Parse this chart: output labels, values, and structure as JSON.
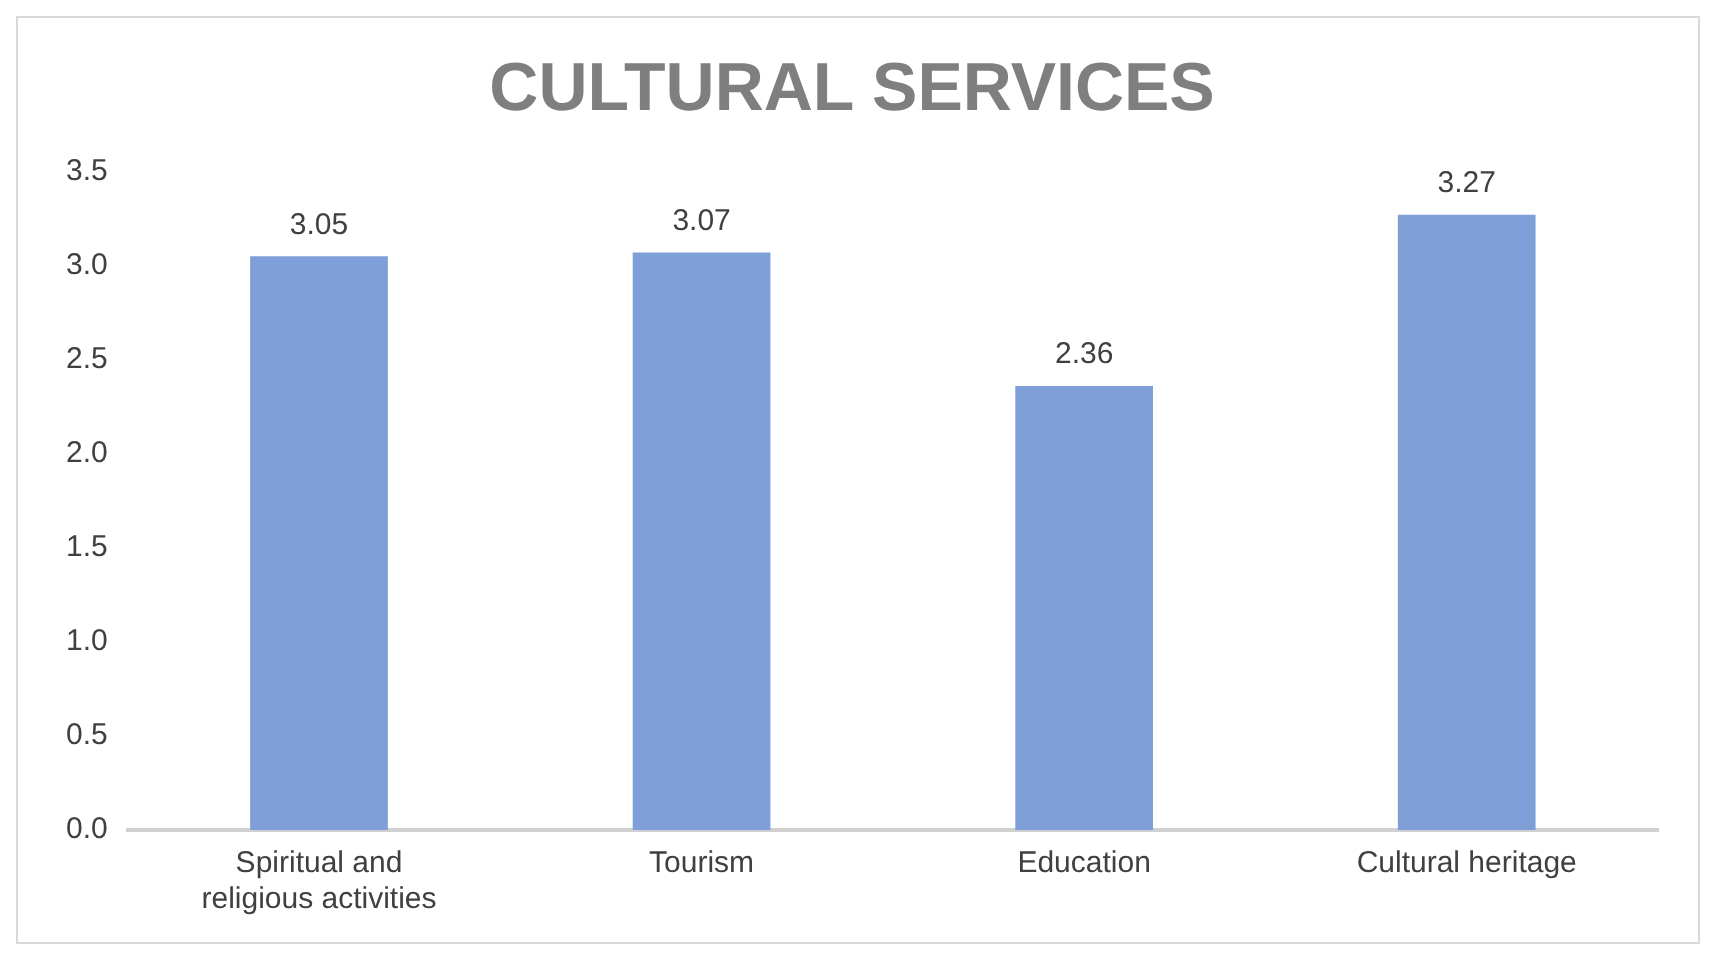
{
  "chart_data": {
    "type": "bar",
    "title": "CULTURAL SERVICES",
    "categories": [
      "Spiritual and religious activities",
      "Tourism",
      "Education",
      "Cultural heritage"
    ],
    "values": [
      3.05,
      3.07,
      2.36,
      3.27
    ],
    "color": "#7f9fd9",
    "ylim": [
      0,
      3.5
    ],
    "yticks": [
      {
        "value": 0,
        "label": "0.0"
      },
      {
        "value": 0.5,
        "label": "0.5"
      },
      {
        "value": 1,
        "label": "1.0"
      },
      {
        "value": 1.5,
        "label": "1.5"
      },
      {
        "value": 2,
        "label": "2.0"
      },
      {
        "value": 2.5,
        "label": "2.5"
      },
      {
        "value": 3,
        "label": "3.0"
      },
      {
        "value": 3.5,
        "label": "3.5"
      }
    ],
    "data_labels": true,
    "grid": false,
    "legend": false
  }
}
